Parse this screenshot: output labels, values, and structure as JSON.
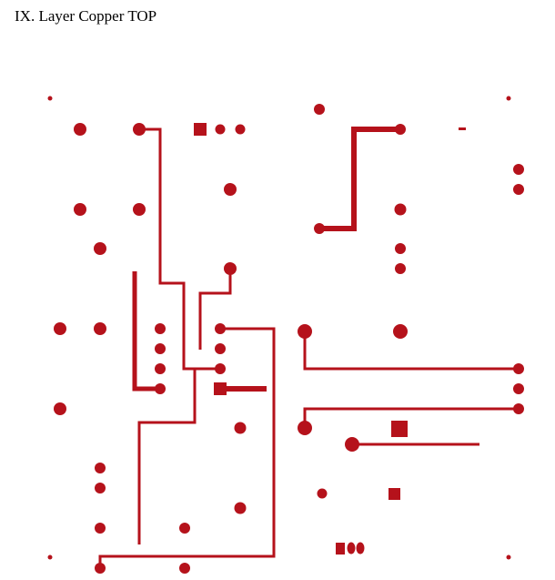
{
  "heading": "IX. Layer Copper TOP",
  "colors": {
    "copper": "#b5121b",
    "background": "#ffffff",
    "text": "#000000"
  }
}
